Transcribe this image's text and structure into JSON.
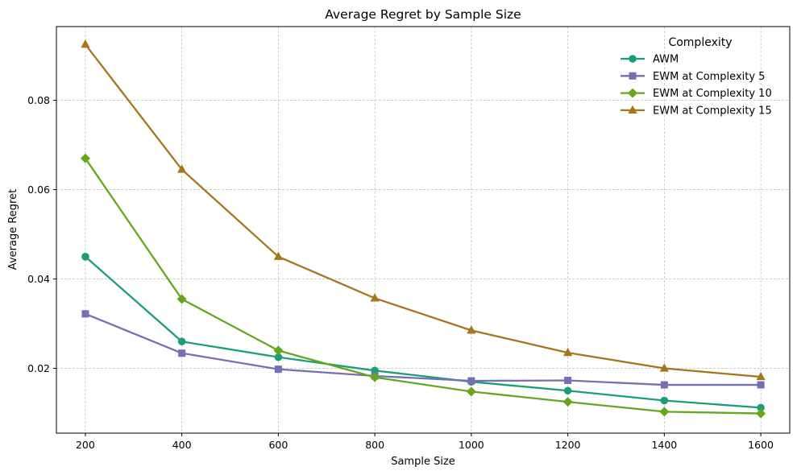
{
  "chart_data": {
    "type": "line",
    "title": "Average Regret by Sample Size",
    "xlabel": "Sample Size",
    "ylabel": "Average Regret",
    "x": [
      200,
      400,
      600,
      800,
      1000,
      1200,
      1400,
      1600
    ],
    "xlim": [
      140,
      1660
    ],
    "ylim": [
      0.0055,
      0.0965
    ],
    "xticks": [
      200,
      400,
      600,
      800,
      1000,
      1200,
      1400,
      1600
    ],
    "xtick_labels": [
      "200",
      "400",
      "600",
      "800",
      "1000",
      "1200",
      "1400",
      "1600"
    ],
    "yticks": [
      0.02,
      0.04,
      0.06,
      0.08
    ],
    "ytick_labels": [
      "0.02",
      "0.04",
      "0.06",
      "0.08"
    ],
    "grid": true,
    "legend": {
      "title": "Complexity",
      "placement": "top-right"
    },
    "series": [
      {
        "name": "AWM",
        "color": "#1b9e77",
        "marker": "circle",
        "values": [
          0.045,
          0.026,
          0.0225,
          0.0195,
          0.017,
          0.015,
          0.0128,
          0.0112
        ]
      },
      {
        "name": "EWM at Complexity 5",
        "color": "#7570b3",
        "marker": "square",
        "values": [
          0.0322,
          0.0234,
          0.0198,
          0.0183,
          0.0172,
          0.0173,
          0.0163,
          0.0163
        ]
      },
      {
        "name": "EWM at Complexity 10",
        "color": "#66a61e",
        "marker": "diamond",
        "values": [
          0.067,
          0.0355,
          0.024,
          0.018,
          0.0148,
          0.0125,
          0.0103,
          0.0099
        ]
      },
      {
        "name": "EWM at Complexity 15",
        "color": "#a6761d",
        "marker": "triangle",
        "values": [
          0.0925,
          0.0645,
          0.045,
          0.0357,
          0.0285,
          0.0235,
          0.02,
          0.0181
        ]
      }
    ]
  }
}
